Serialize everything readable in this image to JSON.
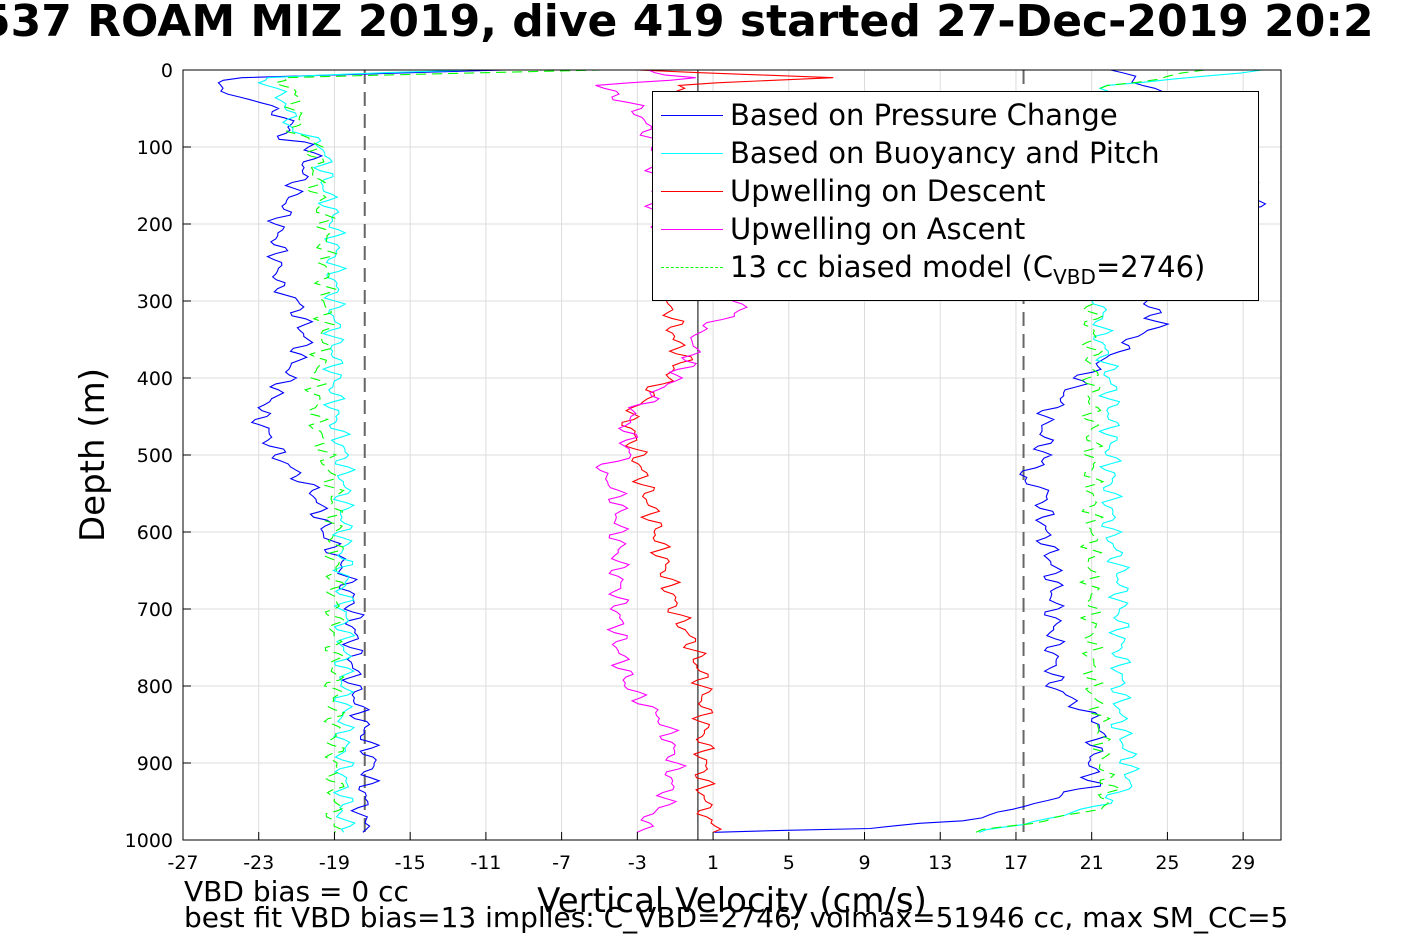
{
  "title": "537 ROAM MIZ 2019, dive 419 started 27-Dec-2019 20:2",
  "footnotes": {
    "line1": "VBD bias = 0 cc",
    "line2": "best fit VBD bias=13 implies: C_VBD=2746, volmax=51946 cc, max SM_CC=5"
  },
  "legend": {
    "items": [
      {
        "label": "Based on Pressure Change",
        "color": "#0000ff",
        "style": "solid"
      },
      {
        "label": "Based on Buoyancy and Pitch",
        "color": "#00ffff",
        "style": "solid"
      },
      {
        "label": "Upwelling on Descent",
        "color": "#ff0000",
        "style": "solid"
      },
      {
        "label": "Upwelling on Ascent",
        "color": "#ff00ff",
        "style": "solid"
      },
      {
        "label_prefix": "13 cc biased model (C",
        "label_sub": "VBD",
        "label_suffix": "=2746)",
        "color": "#00ff00",
        "style": "dashed"
      }
    ]
  },
  "chart_data": {
    "type": "line",
    "title": "537 ROAM MIZ 2019, dive 419 started 27-Dec-2019 20:2",
    "xlabel": "Vertical Velocity (cm/s)",
    "ylabel": "Depth (m)",
    "xlim": [
      -27,
      31
    ],
    "ylim": [
      0,
      1000
    ],
    "y_reversed": true,
    "grid": true,
    "legend_position": "top-right",
    "xticks": [
      -27,
      -23,
      -19,
      -15,
      -11,
      -7,
      -3,
      1,
      5,
      9,
      13,
      17,
      21,
      25,
      29
    ],
    "yticks": [
      0,
      100,
      200,
      300,
      400,
      500,
      600,
      700,
      800,
      900,
      1000
    ],
    "reference_lines": [
      {
        "x": -17.4,
        "style": "dashed",
        "color": "#666666"
      },
      {
        "x": 17.4,
        "style": "dashed",
        "color": "#666666"
      },
      {
        "x": 0.2,
        "style": "solid",
        "color": "#000000"
      }
    ],
    "series": [
      {
        "name": "Based on Pressure Change",
        "color": "#0000ff",
        "descent": {
          "depth": [
            0,
            10,
            20,
            35,
            50,
            70,
            90,
            100,
            150,
            200,
            250,
            280,
            300,
            350,
            400,
            450,
            500,
            550,
            600,
            650,
            700,
            750,
            800,
            850,
            900,
            950,
            990
          ],
          "x": [
            -10,
            -24,
            -25.5,
            -24,
            -22,
            -21.5,
            -21.5,
            -20,
            -21,
            -22,
            -22,
            -22,
            -21,
            -20.5,
            -21.5,
            -23,
            -22,
            -20,
            -19.5,
            -18.5,
            -18,
            -18,
            -18,
            -17.5,
            -17,
            -17.5,
            -17.5
          ]
        },
        "ascent": {
          "depth": [
            990,
            985,
            975,
            960,
            930,
            900,
            850,
            800,
            750,
            700,
            650,
            600,
            550,
            525,
            500,
            450,
            400,
            370,
            330,
            300,
            250,
            200,
            170,
            100,
            50,
            20,
            0
          ],
          "x": [
            0.5,
            9,
            14,
            17,
            21,
            21,
            21.5,
            19,
            19,
            19,
            19,
            18.5,
            18.5,
            17.5,
            18.5,
            18.5,
            20.5,
            22,
            24.5,
            24,
            26,
            28,
            30,
            28,
            26,
            24,
            22
          ]
        }
      },
      {
        "name": "Based on Buoyancy and Pitch",
        "color": "#00ffff",
        "descent": {
          "depth": [
            0,
            10,
            20,
            40,
            60,
            80,
            100,
            150,
            200,
            250,
            300,
            350,
            400,
            450,
            500,
            550,
            600,
            650,
            700,
            750,
            800,
            850,
            900,
            950,
            990
          ],
          "x": [
            -12,
            -23,
            -22.5,
            -21.5,
            -21.5,
            -21,
            -19.5,
            -19.5,
            -19,
            -19,
            -19,
            -19,
            -19,
            -19,
            -18.5,
            -18.5,
            -18.5,
            -18.5,
            -18.5,
            -18.5,
            -18.5,
            -18.5,
            -18.5,
            -18.5,
            -18.5
          ]
        },
        "ascent": {
          "depth": [
            990,
            980,
            960,
            930,
            900,
            850,
            800,
            750,
            700,
            650,
            600,
            550,
            500,
            450,
            400,
            350,
            300,
            250,
            200,
            150,
            100,
            50,
            20,
            0
          ],
          "x": [
            15,
            17,
            21,
            23,
            23,
            22.5,
            22.5,
            22.5,
            22.5,
            22.5,
            22,
            22,
            22,
            22,
            22,
            21.5,
            21.5,
            21.5,
            21.5,
            21.5,
            21.5,
            21.5,
            22,
            30
          ]
        }
      },
      {
        "name": "Upwelling on Descent",
        "color": "#ff0000",
        "values": {
          "depth": [
            0,
            10,
            20,
            50,
            100,
            150,
            200,
            250,
            300,
            330,
            350,
            380,
            400,
            450,
            500,
            550,
            600,
            650,
            700,
            750,
            800,
            850,
            900,
            950,
            990
          ],
          "x": [
            -3,
            7,
            -1,
            -1,
            -1,
            -1,
            -1.5,
            -1.5,
            -1.5,
            -1,
            -1,
            -0.5,
            -1.5,
            -3.5,
            -3,
            -2.5,
            -2,
            -1.5,
            -1,
            0,
            0.5,
            0.5,
            0.5,
            0.5,
            1
          ]
        }
      },
      {
        "name": "Upwelling on Ascent",
        "color": "#ff00ff",
        "values": {
          "depth": [
            0,
            10,
            20,
            50,
            100,
            150,
            200,
            250,
            300,
            320,
            340,
            370,
            400,
            450,
            500,
            520,
            550,
            600,
            650,
            700,
            750,
            800,
            850,
            900,
            950,
            990
          ],
          "x": [
            -3,
            0,
            -5,
            -3,
            -2,
            -2,
            -2,
            -1,
            2.5,
            2,
            0,
            0,
            -1,
            -3.5,
            -3.5,
            -5,
            -4,
            -4,
            -4,
            -4,
            -4,
            -3.5,
            -1.5,
            -1,
            -1.5,
            -3
          ]
        }
      },
      {
        "name": "13 cc biased model (CVBD=2746)",
        "color": "#00ff00",
        "dashed": true,
        "descent": {
          "depth": [
            0,
            10,
            20,
            40,
            60,
            80,
            100,
            150,
            200,
            250,
            300,
            350,
            400,
            450,
            500,
            550,
            600,
            650,
            700,
            750,
            800,
            850,
            900,
            950,
            990
          ],
          "x": [
            -5,
            -22,
            -21.5,
            -21,
            -21,
            -21,
            -20,
            -20,
            -19.5,
            -19.5,
            -19.5,
            -19.5,
            -20,
            -20,
            -19.5,
            -19,
            -19,
            -19,
            -19,
            -19,
            -19,
            -19,
            -19,
            -19,
            -19
          ]
        },
        "ascent": {
          "depth": [
            990,
            960,
            930,
            900,
            850,
            800,
            750,
            700,
            650,
            600,
            550,
            500,
            450,
            400,
            350,
            300,
            200,
            100,
            50,
            20,
            0
          ],
          "x": [
            15,
            21.5,
            22,
            21.5,
            21.5,
            21,
            21,
            21,
            21,
            21,
            21,
            21,
            21,
            21,
            21,
            21,
            21,
            21,
            21,
            22,
            27
          ]
        }
      }
    ]
  }
}
